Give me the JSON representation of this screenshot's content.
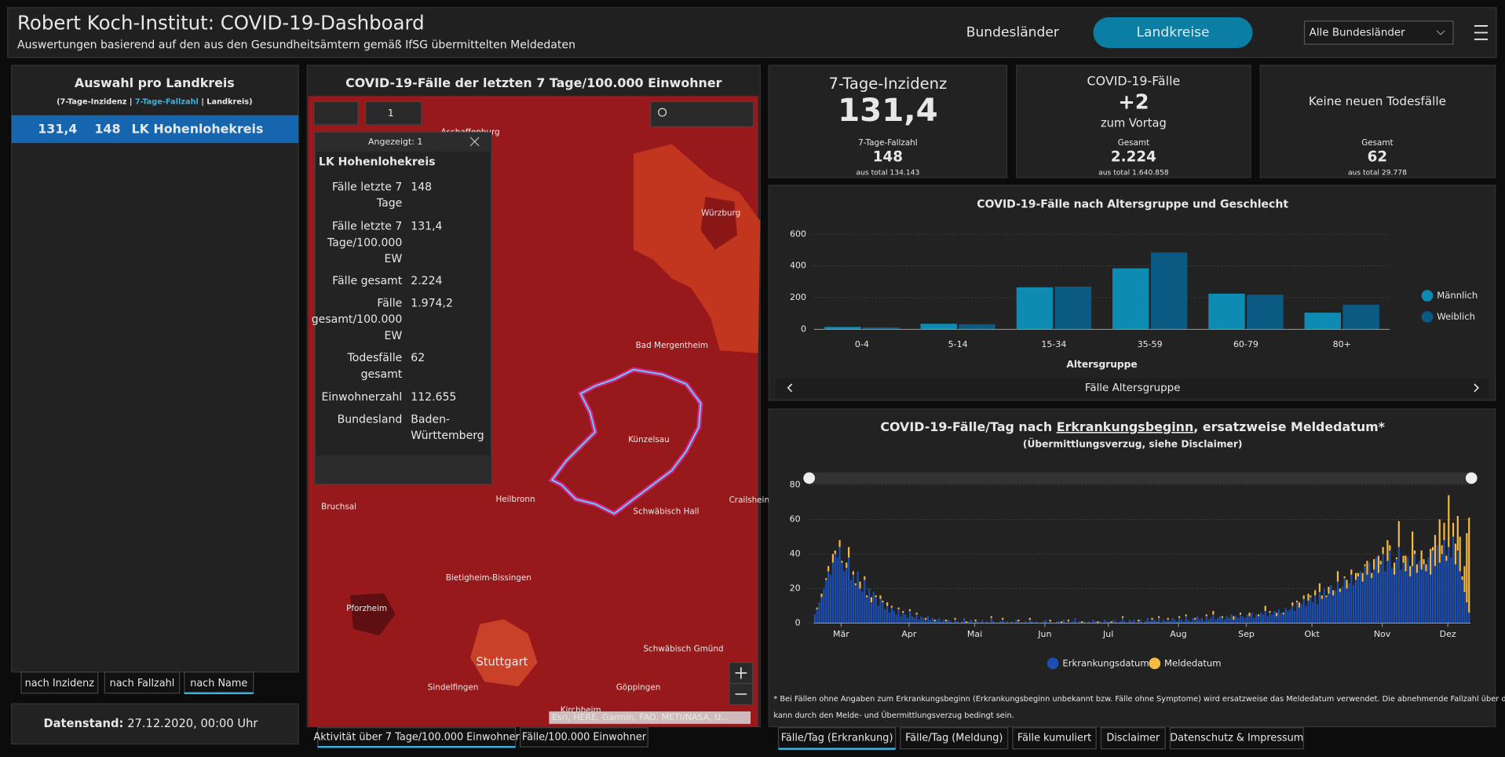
{
  "header": {
    "title": "Robert Koch-Institut: COVID-19-Dashboard",
    "subtitle": "Auswertungen basierend auf den aus den Gesundheitsämtern gemäß IfSG übermittelten Meldedaten",
    "nav": [
      "Bundesländer",
      "Landkreise"
    ],
    "dropdown": "Alle Bundesländer"
  },
  "list_panel": {
    "title": "Auswahl pro Landkreis",
    "legend": [
      "(7-Tage-Inzidenz | ",
      "7-Tage-Fallzahl",
      " | Landkreis)"
    ],
    "rows": [
      [
        "131,4",
        "148",
        "LK Hohenlohekreis"
      ]
    ],
    "sort_tabs": [
      "nach Inzidenz",
      "nach Fallzahl",
      "nach Name"
    ],
    "status_label": "Datenstand:",
    "status_value": "27.12.2020, 00:00 Uhr"
  },
  "map_panel": {
    "title": "COVID-19-Fälle der letzten 7 Tage/100.000 Einwohner",
    "selection_count": "1",
    "places": [
      "Aschaffenburg",
      "Würzburg",
      "Bad Mergentheim",
      "Künzelsau",
      "Heilbronn",
      "Schwäbisch Hall",
      "Crailsheim",
      "Bruchsal",
      "Bietigheim-Bissingen",
      "Pforzheim",
      "Stuttgart",
      "Schwäbisch Gmünd",
      "Sindelfingen",
      "Göppingen",
      "Kirchheim"
    ],
    "attribution": "Esri, HERE, Garmin, FAO, METI/NASA, U...",
    "popup": {
      "header": "Angezeigt: 1",
      "name": "LK Hohenlohekreis",
      "fields": [
        {
          "label": [
            "Fälle letzte 7",
            "Tage"
          ],
          "value": [
            "148"
          ]
        },
        {
          "label": [
            "Fälle letzte 7",
            "Tage/100.000",
            "EW"
          ],
          "value": [
            "131,4"
          ]
        },
        {
          "label": [
            "Fälle gesamt"
          ],
          "value": [
            "2.224"
          ]
        },
        {
          "label": [
            "Fälle",
            "gesamt/100.000",
            "EW"
          ],
          "value": [
            "1.974,2"
          ]
        },
        {
          "label": [
            "Todesfälle",
            "gesamt"
          ],
          "value": [
            "62"
          ]
        },
        {
          "label": [
            "Einwohnerzahl"
          ],
          "value": [
            "112.655"
          ]
        },
        {
          "label": [
            "Bundesland"
          ],
          "value": [
            "Baden-",
            "Württemberg"
          ]
        }
      ]
    },
    "tabs": [
      "Aktivität über 7 Tage/100.000 Einwohner",
      "Fälle/100.000 Einwohner"
    ]
  },
  "cards": [
    {
      "title": "7-Tage-Inzidenz",
      "value": "131,4",
      "sub_label": "7-Tage-Fallzahl",
      "sub_value": "148",
      "note": "aus total 134.143"
    },
    {
      "title": "COVID-19-Fälle",
      "value": "+2",
      "caption": "zum Vortag",
      "sub_label": "Gesamt",
      "sub_value": "2.224",
      "note": "aus total 1.640.858"
    },
    {
      "title": "Keine neuen Todesfälle",
      "sub_label": "Gesamt",
      "sub_value": "62",
      "note": "aus total 29.778"
    }
  ],
  "age_chart": {
    "type": "bar",
    "title": "COVID-19-Fälle nach Altersgruppe und Geschlecht",
    "xlabel": "Altersgruppe",
    "footer": "Fälle Altersgruppe",
    "categories": [
      "0-4",
      "5-14",
      "15-34",
      "35-59",
      "60-79",
      "80+"
    ],
    "series": [
      {
        "name": "Männlich",
        "color": "#0e8bb2",
        "values": [
          15,
          35,
          265,
          385,
          225,
          105
        ]
      },
      {
        "name": "Weiblich",
        "color": "#0b5a84",
        "values": [
          12,
          32,
          270,
          485,
          218,
          155
        ]
      }
    ],
    "ylim": [
      0,
      600
    ],
    "yticks": [
      0,
      200,
      400,
      600
    ],
    "grid": true
  },
  "daily_chart": {
    "type": "bar",
    "stacked": true,
    "title": [
      "COVID-19-Fälle/Tag nach ",
      "Erkrankungsbeginn",
      ", ersatzweise Meldedatum*"
    ],
    "subtitle": "(Übermittlungsverzug, siehe Disclaimer)",
    "xlim": [
      0,
      290
    ],
    "xticks": [
      {
        "value": 12,
        "label": "Mär"
      },
      {
        "value": 42,
        "label": "Apr"
      },
      {
        "value": 71,
        "label": "Mai"
      },
      {
        "value": 102,
        "label": "Jun"
      },
      {
        "value": 130,
        "label": "Jul"
      },
      {
        "value": 161,
        "label": "Aug"
      },
      {
        "value": 191,
        "label": "Sep"
      },
      {
        "value": 220,
        "label": "Okt"
      },
      {
        "value": 251,
        "label": "Nov"
      },
      {
        "value": 280,
        "label": "Dez"
      }
    ],
    "ylim": [
      0,
      80
    ],
    "yticks": [
      0,
      20,
      40,
      60,
      80
    ],
    "grid": true,
    "series": [
      {
        "name": "Erkrankungsdatum",
        "color": "#1c4fb4",
        "values": [
          5,
          8,
          12,
          15,
          20,
          25,
          30,
          28,
          35,
          40,
          38,
          44,
          35,
          30,
          32,
          38,
          25,
          28,
          22,
          30,
          20,
          18,
          25,
          15,
          20,
          12,
          18,
          15,
          10,
          14,
          12,
          8,
          10,
          6,
          9,
          7,
          5,
          8,
          4,
          6,
          5,
          3,
          7,
          4,
          3,
          5,
          2,
          4,
          3,
          2,
          4,
          2,
          3,
          1,
          2,
          3,
          1,
          2,
          1,
          2,
          1,
          0,
          2,
          1,
          0,
          1,
          3,
          0,
          1,
          2,
          0,
          1,
          1,
          0,
          2,
          0,
          1,
          0,
          3,
          1,
          0,
          0,
          1,
          2,
          0,
          1,
          0,
          1,
          0,
          2,
          1,
          0,
          0,
          1,
          0,
          2,
          1,
          0,
          1,
          0,
          0,
          1,
          2,
          0,
          1,
          0,
          0,
          1,
          1,
          0,
          2,
          0,
          1,
          0,
          1,
          3,
          0,
          1,
          0,
          1,
          0,
          1,
          0,
          2,
          1,
          0,
          1,
          0,
          2,
          1,
          1,
          0,
          2,
          1,
          0,
          1,
          3,
          1,
          0,
          2,
          1,
          2,
          0,
          1,
          2,
          0,
          1,
          3,
          1,
          2,
          2,
          1,
          3,
          0,
          2,
          1,
          2,
          1,
          3,
          2,
          1,
          3,
          2,
          1,
          4,
          2,
          1,
          3,
          2,
          4,
          2,
          3,
          1,
          4,
          2,
          3,
          5,
          2,
          3,
          4,
          3,
          2,
          4,
          3,
          5,
          2,
          4,
          3,
          5,
          4,
          3,
          5,
          4,
          6,
          3,
          5,
          4,
          6,
          5,
          7,
          4,
          6,
          5,
          7,
          4,
          8,
          6,
          5,
          9,
          7,
          8,
          10,
          7,
          12,
          9,
          11,
          14,
          10,
          13,
          15,
          12,
          16,
          11,
          18,
          14,
          20,
          15,
          17,
          22,
          16,
          19,
          24,
          18,
          21,
          26,
          20,
          23,
          28,
          22,
          25,
          27,
          30,
          24,
          33,
          28,
          35,
          26,
          31,
          38,
          29,
          34,
          40,
          30,
          36,
          42,
          32,
          28,
          37,
          44,
          31,
          35,
          30,
          38,
          27,
          33,
          40,
          29,
          36,
          31,
          34,
          30,
          38,
          28,
          42,
          33,
          45,
          35,
          40,
          48,
          36,
          44,
          38,
          50,
          34,
          42,
          30,
          25,
          18,
          12,
          6
        ]
      },
      {
        "name": "Meldedatum",
        "color": "#f6bb45",
        "values": [
          0,
          1,
          0,
          2,
          0,
          1,
          3,
          0,
          5,
          2,
          0,
          4,
          1,
          0,
          3,
          6,
          0,
          2,
          1,
          0,
          4,
          0,
          2,
          1,
          0,
          3,
          0,
          1,
          0,
          2,
          1,
          0,
          2,
          0,
          1,
          0,
          0,
          1,
          0,
          1,
          0,
          0,
          1,
          0,
          0,
          1,
          0,
          0,
          0,
          1,
          0,
          0,
          0,
          1,
          0,
          0,
          0,
          0,
          1,
          0,
          0,
          0,
          1,
          0,
          0,
          0,
          0,
          1,
          0,
          0,
          0,
          1,
          0,
          0,
          0,
          0,
          0,
          0,
          1,
          0,
          0,
          0,
          0,
          1,
          0,
          0,
          0,
          0,
          0,
          0,
          1,
          0,
          0,
          0,
          0,
          1,
          0,
          0,
          0,
          0,
          0,
          0,
          0,
          0,
          1,
          0,
          0,
          0,
          0,
          1,
          0,
          0,
          1,
          0,
          0,
          0,
          0,
          0,
          1,
          0,
          0,
          0,
          0,
          0,
          0,
          1,
          0,
          0,
          0,
          0,
          0,
          1,
          0,
          0,
          0,
          0,
          1,
          0,
          0,
          0,
          0,
          0,
          0,
          1,
          0,
          0,
          0,
          0,
          0,
          1,
          0,
          0,
          1,
          0,
          0,
          0,
          1,
          0,
          0,
          0,
          0,
          1,
          0,
          0,
          1,
          0,
          0,
          0,
          1,
          0,
          0,
          0,
          0,
          1,
          0,
          0,
          2,
          0,
          0,
          0,
          1,
          0,
          0,
          0,
          0,
          2,
          0,
          0,
          1,
          0,
          0,
          0,
          2,
          0,
          0,
          0,
          1,
          0,
          0,
          3,
          0,
          1,
          0,
          0,
          2,
          0,
          0,
          1,
          0,
          0,
          0,
          2,
          0,
          1,
          3,
          0,
          2,
          0,
          4,
          1,
          0,
          3,
          0,
          5,
          2,
          0,
          1,
          4,
          0,
          3,
          0,
          6,
          2,
          0,
          1,
          5,
          0,
          3,
          0,
          4,
          2,
          0,
          5,
          1,
          8,
          0,
          3,
          6,
          0,
          10,
          2,
          4,
          0,
          12,
          3,
          0,
          7,
          1,
          15,
          0,
          4,
          9,
          0,
          6,
          20,
          2,
          5,
          0,
          11,
          3,
          4,
          0,
          15,
          2,
          18,
          0,
          25,
          5,
          10,
          3,
          30,
          0,
          8,
          12,
          20,
          20,
          2,
          15,
          40,
          55
        ]
      }
    ],
    "footnote": [
      "* Bei Fällen ohne Angaben zum Erkrankungsbeginn (Erkrankungsbeginn unbekannt bzw. Fälle ohne Symptome) wird ersatzweise das Meldedatum verwendet. Die abnehmende Fallzahl über die letzten Tage",
      "kann durch den Melde- und Übermittlungsverzug bedingt sein."
    ]
  },
  "bottom_tabs": [
    "Fälle/Tag (Erkrankung)",
    "Fälle/Tag (Meldung)",
    "Fälle kumuliert",
    "Disclaimer",
    "Datenschutz & Impressum"
  ]
}
